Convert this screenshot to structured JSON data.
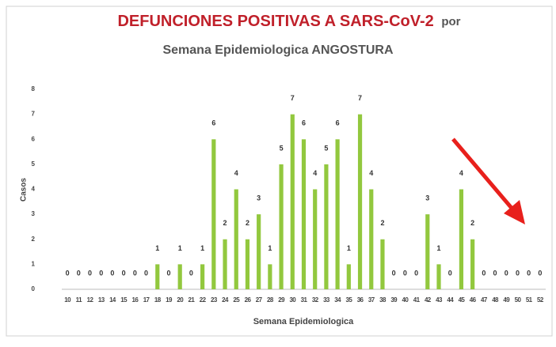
{
  "chart_data": {
    "type": "bar",
    "title": "DEFUNCIONES POSITIVAS A SARS-CoV-2",
    "title_suffix": "por",
    "subtitle": "Semana Epidemiologica  ANGOSTURA",
    "x_label": "Semana Epidemiologica",
    "y_label": "Casos",
    "categories": [
      "10",
      "11",
      "12",
      "13",
      "14",
      "15",
      "16",
      "17",
      "18",
      "19",
      "20",
      "21",
      "22",
      "23",
      "24",
      "25",
      "26",
      "27",
      "28",
      "29",
      "30",
      "31",
      "32",
      "33",
      "34",
      "35",
      "36",
      "37",
      "38",
      "39",
      "40",
      "41",
      "42",
      "43",
      "44",
      "45",
      "46",
      "47",
      "48",
      "49",
      "50",
      "51",
      "52"
    ],
    "values": [
      0,
      0,
      0,
      0,
      0,
      0,
      0,
      0,
      1,
      0,
      1,
      0,
      1,
      6,
      2,
      4,
      2,
      3,
      1,
      5,
      7,
      6,
      4,
      5,
      6,
      1,
      7,
      4,
      2,
      0,
      0,
      0,
      3,
      1,
      0,
      4,
      2,
      0,
      0,
      0,
      0,
      0,
      0
    ],
    "color": "#92c83e",
    "ylim": [
      0,
      8
    ],
    "yticks": [
      0,
      1,
      2,
      3,
      4,
      5,
      6,
      7,
      8
    ],
    "grid": false
  }
}
